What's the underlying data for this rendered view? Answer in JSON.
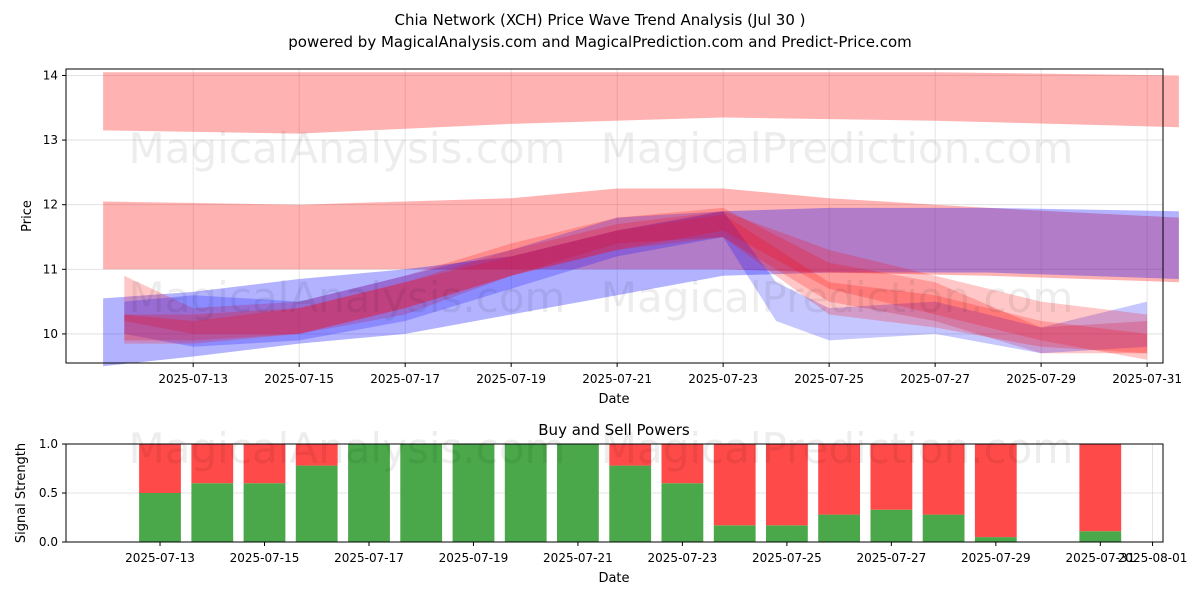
{
  "title": "Chia Network (XCH) Price Wave Trend Analysis (Jul 30 )",
  "subtitle": "powered by MagicalAnalysis.com and MagicalPrediction.com and Predict-Price.com",
  "watermarks": [
    "MagicalAnalysis.com",
    "MagicalPrediction.com"
  ],
  "colors": {
    "red_band": "#ff0000",
    "blue_band": "#0000ff",
    "buy": "#4aa84a",
    "sell": "#ff4a4a"
  },
  "chart_data": [
    {
      "type": "area",
      "name": "price-wave",
      "xlabel": "Date",
      "ylabel": "Price",
      "x_start": "2025-07-10",
      "x_range_days": [
        0.6,
        21.3
      ],
      "ylim": [
        9.55,
        14.1
      ],
      "yticks": [
        10,
        11,
        12,
        13,
        14
      ],
      "xticks": [
        {
          "day": 3,
          "label": "2025-07-13"
        },
        {
          "day": 5,
          "label": "2025-07-15"
        },
        {
          "day": 7,
          "label": "2025-07-17"
        },
        {
          "day": 9,
          "label": "2025-07-19"
        },
        {
          "day": 11,
          "label": "2025-07-21"
        },
        {
          "day": 13,
          "label": "2025-07-23"
        },
        {
          "day": 15,
          "label": "2025-07-25"
        },
        {
          "day": 17,
          "label": "2025-07-27"
        },
        {
          "day": 19,
          "label": "2025-07-29"
        },
        {
          "day": 21,
          "label": "2025-07-31"
        }
      ],
      "grid": true,
      "bands": [
        {
          "color": "red",
          "opacity": 0.3,
          "x": [
            1.3,
            5,
            9,
            13,
            17,
            21.6
          ],
          "upper": [
            14.05,
            14.05,
            14.05,
            14.05,
            14.05,
            14.0
          ],
          "lower": [
            13.15,
            13.1,
            13.25,
            13.35,
            13.3,
            13.2
          ]
        },
        {
          "color": "red",
          "opacity": 0.3,
          "x": [
            1.3,
            5,
            9,
            11,
            13,
            15,
            18,
            21.6
          ],
          "upper": [
            12.05,
            12.0,
            12.1,
            12.25,
            12.25,
            12.1,
            11.95,
            11.8
          ],
          "lower": [
            11.0,
            11.0,
            11.0,
            11.0,
            11.0,
            10.95,
            10.9,
            10.8
          ]
        },
        {
          "color": "blue",
          "opacity": 0.3,
          "x": [
            1.3,
            3,
            5,
            7,
            9,
            11,
            13,
            15,
            18,
            21.6
          ],
          "upper": [
            10.55,
            10.65,
            10.85,
            11.0,
            11.2,
            11.6,
            11.9,
            11.95,
            11.95,
            11.9
          ],
          "lower": [
            9.5,
            9.65,
            9.85,
            10.0,
            10.3,
            10.6,
            10.9,
            10.95,
            10.95,
            10.85
          ]
        },
        {
          "color": "red",
          "opacity": 0.22,
          "x": [
            1.7,
            3,
            5,
            7,
            9,
            11,
            13,
            15,
            17,
            19,
            21
          ],
          "upper": [
            10.9,
            10.4,
            10.5,
            10.9,
            11.4,
            11.8,
            11.95,
            11.1,
            10.8,
            10.1,
            10.2
          ],
          "lower": [
            10.2,
            10.0,
            10.0,
            10.3,
            10.9,
            11.4,
            11.5,
            10.5,
            10.2,
            9.7,
            9.7
          ]
        },
        {
          "color": "blue",
          "opacity": 0.22,
          "x": [
            1.7,
            3,
            5,
            7,
            9,
            11,
            13,
            14,
            15,
            17,
            19,
            21
          ],
          "upper": [
            10.5,
            10.6,
            10.5,
            10.9,
            11.3,
            11.8,
            11.9,
            10.8,
            10.4,
            10.5,
            10.1,
            10.5
          ],
          "lower": [
            10.0,
            9.8,
            9.9,
            10.2,
            10.7,
            11.2,
            11.5,
            10.2,
            9.9,
            10.0,
            9.7,
            9.8
          ]
        },
        {
          "color": "red",
          "opacity": 0.22,
          "x": [
            1.7,
            3,
            5,
            7,
            9,
            11,
            13,
            15,
            17,
            19,
            21
          ],
          "upper": [
            10.3,
            10.3,
            10.4,
            10.8,
            11.3,
            11.7,
            11.9,
            11.3,
            10.9,
            10.5,
            10.3
          ],
          "lower": [
            9.9,
            9.9,
            10.0,
            10.4,
            10.9,
            11.3,
            11.6,
            10.7,
            10.3,
            9.9,
            9.6
          ]
        },
        {
          "color": "red",
          "opacity": 0.22,
          "x": [
            1.7,
            3,
            5,
            7,
            9,
            11,
            13,
            15,
            17,
            19,
            21
          ],
          "upper": [
            10.3,
            10.2,
            10.4,
            10.8,
            11.2,
            11.6,
            11.85,
            10.8,
            10.6,
            10.2,
            10.0
          ],
          "lower": [
            9.85,
            9.85,
            10.0,
            10.4,
            10.9,
            11.3,
            11.5,
            10.3,
            10.1,
            9.8,
            9.7
          ]
        }
      ]
    },
    {
      "type": "bar",
      "name": "buy-sell-powers",
      "title": "Buy and Sell Powers",
      "xlabel": "Date",
      "ylabel": "Signal Strength",
      "ylim": [
        0,
        1
      ],
      "yticks": [
        "0.0",
        "0.5",
        "1.0"
      ],
      "x_range_days": [
        1.2,
        22.2
      ],
      "grid": true,
      "xticks": [
        {
          "day": 3,
          "label": "2025-07-13"
        },
        {
          "day": 5,
          "label": "2025-07-15"
        },
        {
          "day": 7,
          "label": "2025-07-17"
        },
        {
          "day": 9,
          "label": "2025-07-19"
        },
        {
          "day": 11,
          "label": "2025-07-21"
        },
        {
          "day": 13,
          "label": "2025-07-23"
        },
        {
          "day": 15,
          "label": "2025-07-25"
        },
        {
          "day": 17,
          "label": "2025-07-27"
        },
        {
          "day": 19,
          "label": "2025-07-29"
        },
        {
          "day": 21,
          "label": "2025-07-31"
        },
        {
          "day": 22,
          "label": "2025-08-01"
        }
      ],
      "days": [
        3,
        4,
        5,
        6,
        7,
        8,
        9,
        10,
        11,
        12,
        13,
        14,
        15,
        16,
        17,
        18,
        19,
        21
      ],
      "series": [
        {
          "name": "Buy",
          "color": "green",
          "values": [
            0.5,
            0.6,
            0.6,
            0.78,
            1.0,
            1.0,
            1.0,
            1.0,
            1.0,
            0.78,
            0.6,
            0.17,
            0.17,
            0.28,
            0.33,
            0.28,
            0.05,
            0.11
          ]
        },
        {
          "name": "Sell",
          "color": "red",
          "values": [
            0.5,
            0.4,
            0.4,
            0.22,
            0.0,
            0.0,
            0.0,
            0.0,
            0.0,
            0.22,
            0.4,
            0.83,
            0.83,
            0.72,
            0.67,
            0.72,
            0.95,
            0.89
          ]
        }
      ]
    }
  ]
}
